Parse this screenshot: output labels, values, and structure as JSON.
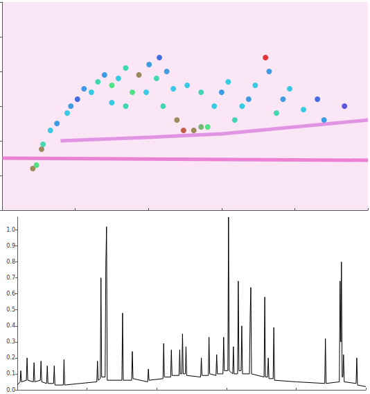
{
  "chart_data": [
    {
      "type": "scatter",
      "xlim": [
        0,
        50
      ],
      "ylim": [
        0,
        6
      ],
      "xticks": [
        0,
        10,
        20,
        30,
        40,
        50
      ],
      "yticks": [
        0,
        1,
        2,
        3,
        4,
        5,
        6
      ],
      "tick_labels": false,
      "grid": false,
      "color_range": [
        0,
        1
      ],
      "points": [
        [
          4.2,
          1.2,
          0.9
        ],
        [
          4.7,
          1.3,
          0.8
        ],
        [
          5.4,
          1.76,
          0.9
        ],
        [
          5.6,
          1.9,
          0.7
        ],
        [
          6.6,
          2.3,
          0.6
        ],
        [
          7.5,
          2.5,
          0.5
        ],
        [
          8.9,
          2.8,
          0.6
        ],
        [
          9.4,
          3.0,
          0.5
        ],
        [
          10.3,
          3.2,
          0.4
        ],
        [
          11.2,
          3.5,
          0.5
        ],
        [
          12.2,
          3.4,
          0.6
        ],
        [
          13.1,
          3.7,
          0.7
        ],
        [
          14.0,
          3.9,
          0.5
        ],
        [
          15.0,
          3.6,
          0.8
        ],
        [
          15.9,
          3.8,
          0.6
        ],
        [
          16.9,
          4.1,
          0.7
        ],
        [
          17.8,
          3.4,
          0.8
        ],
        [
          18.7,
          3.9,
          0.9
        ],
        [
          19.7,
          3.4,
          0.6
        ],
        [
          20.1,
          4.2,
          0.5
        ],
        [
          21.1,
          3.8,
          0.7
        ],
        [
          22.0,
          3.0,
          0.7
        ],
        [
          22.5,
          4.0,
          0.5
        ],
        [
          23.4,
          3.5,
          0.6
        ],
        [
          23.9,
          2.6,
          0.9
        ],
        [
          24.8,
          2.3,
          0.95
        ],
        [
          26.2,
          2.3,
          0.9
        ],
        [
          27.2,
          2.4,
          0.85
        ],
        [
          28.1,
          2.4,
          0.8
        ],
        [
          29.0,
          3.0,
          0.6
        ],
        [
          30.0,
          3.4,
          0.5
        ],
        [
          30.9,
          3.7,
          0.6
        ],
        [
          31.8,
          2.6,
          0.7
        ],
        [
          32.8,
          3.0,
          0.6
        ],
        [
          33.7,
          3.2,
          0.5
        ],
        [
          34.6,
          3.6,
          0.6
        ],
        [
          36.0,
          4.4,
          1.0
        ],
        [
          36.5,
          4.0,
          0.5
        ],
        [
          37.5,
          2.8,
          0.7
        ],
        [
          38.4,
          3.2,
          0.5
        ],
        [
          39.3,
          3.5,
          0.6
        ],
        [
          41.2,
          2.9,
          0.6
        ],
        [
          43.1,
          3.2,
          0.4
        ],
        [
          44.0,
          2.6,
          0.5
        ],
        [
          46.8,
          3.0,
          0.3
        ],
        [
          27.2,
          3.4,
          0.7
        ],
        [
          25.3,
          3.6,
          0.6
        ],
        [
          21.5,
          4.4,
          0.4
        ],
        [
          16.9,
          3.0,
          0.7
        ],
        [
          15.0,
          3.1,
          0.6
        ]
      ],
      "series": [
        {
          "type": "line",
          "color": "#e45fc8",
          "x": [
            0,
            50
          ],
          "values": [
            1.5,
            1.44
          ]
        },
        {
          "type": "line",
          "color": "#d878dc",
          "x": [
            8,
            20,
            30,
            40,
            50
          ],
          "values": [
            2.0,
            2.1,
            2.2,
            2.4,
            2.6
          ]
        }
      ]
    },
    {
      "type": "line",
      "xlim": [
        0,
        50
      ],
      "ylim": [
        0,
        1.08
      ],
      "xticks": [
        0,
        10,
        20,
        30,
        40,
        50
      ],
      "yticks": [
        {
          "value": 0,
          "label": "0.0"
        },
        {
          "value": 0.1,
          "label": "0.1"
        },
        {
          "value": 0.2,
          "label": "0.2"
        },
        {
          "value": 0.3,
          "label": "0.3"
        },
        {
          "value": 0.4,
          "label": "0.4"
        },
        {
          "value": 0.5,
          "label": "0.5"
        },
        {
          "value": 0.6,
          "label": "0.6"
        },
        {
          "value": 0.7,
          "label": "0.7"
        },
        {
          "value": 0.8,
          "label": "0.8"
        },
        {
          "value": 0.9,
          "label": "0.9"
        },
        {
          "value": 1,
          "label": "1.0"
        }
      ],
      "tick_labels": "y",
      "grid": false,
      "color": "#000000",
      "x": [
        0.0,
        0.4,
        0.5,
        0.6,
        1.3,
        1.4,
        1.5,
        2.3,
        2.4,
        2.5,
        3.3,
        3.4,
        3.5,
        4.2,
        4.3,
        4.4,
        5.2,
        5.3,
        5.4,
        6.6,
        6.7,
        6.8,
        9.0,
        11.4,
        11.5,
        11.6,
        11.9,
        12.0,
        12.1,
        12.6,
        12.7,
        12.8,
        12.9,
        15.0,
        15.1,
        15.2,
        16.4,
        16.5,
        16.6,
        18.7,
        18.8,
        18.9,
        20.9,
        21.0,
        21.1,
        22.0,
        22.1,
        22.2,
        23.2,
        23.3,
        23.4,
        23.6,
        23.7,
        23.8,
        24.1,
        24.2,
        24.3,
        26.3,
        26.4,
        26.5,
        27.4,
        27.5,
        27.6,
        28.5,
        28.6,
        28.7,
        29.5,
        29.6,
        29.7,
        30.2,
        30.3,
        30.4,
        30.9,
        31.0,
        31.1,
        31.6,
        31.7,
        31.8,
        32.1,
        32.2,
        32.3,
        33.3,
        33.4,
        33.5,
        33.6,
        35.4,
        35.5,
        35.6,
        35.9,
        36.0,
        36.1,
        36.7,
        36.8,
        36.9,
        40.0,
        44.1,
        44.2,
        44.3,
        46.2,
        46.3,
        46.4,
        46.5,
        46.6,
        46.7,
        46.8,
        46.9,
        48.6,
        48.7,
        48.8,
        50.0
      ],
      "values": [
        0.03,
        0.05,
        0.12,
        0.05,
        0.06,
        0.2,
        0.06,
        0.05,
        0.17,
        0.05,
        0.06,
        0.18,
        0.05,
        0.04,
        0.15,
        0.04,
        0.04,
        0.15,
        0.03,
        0.03,
        0.19,
        0.03,
        0.04,
        0.05,
        0.18,
        0.06,
        0.07,
        0.7,
        0.08,
        0.08,
        0.78,
        1.02,
        0.06,
        0.06,
        0.48,
        0.06,
        0.06,
        0.24,
        0.07,
        0.05,
        0.13,
        0.06,
        0.07,
        0.29,
        0.08,
        0.08,
        0.25,
        0.09,
        0.09,
        0.25,
        0.1,
        0.1,
        0.35,
        0.1,
        0.1,
        0.27,
        0.09,
        0.08,
        0.2,
        0.09,
        0.09,
        0.33,
        0.1,
        0.09,
        0.22,
        0.1,
        0.1,
        0.33,
        0.12,
        0.12,
        1.08,
        0.12,
        0.1,
        0.27,
        0.1,
        0.1,
        0.68,
        0.12,
        0.12,
        0.4,
        0.1,
        0.1,
        0.45,
        0.64,
        0.1,
        0.08,
        0.58,
        0.08,
        0.08,
        0.2,
        0.07,
        0.07,
        0.39,
        0.06,
        0.05,
        0.04,
        0.32,
        0.04,
        0.05,
        0.68,
        0.3,
        0.8,
        0.08,
        0.08,
        0.22,
        0.05,
        0.04,
        0.2,
        0.03,
        0.02
      ]
    }
  ]
}
